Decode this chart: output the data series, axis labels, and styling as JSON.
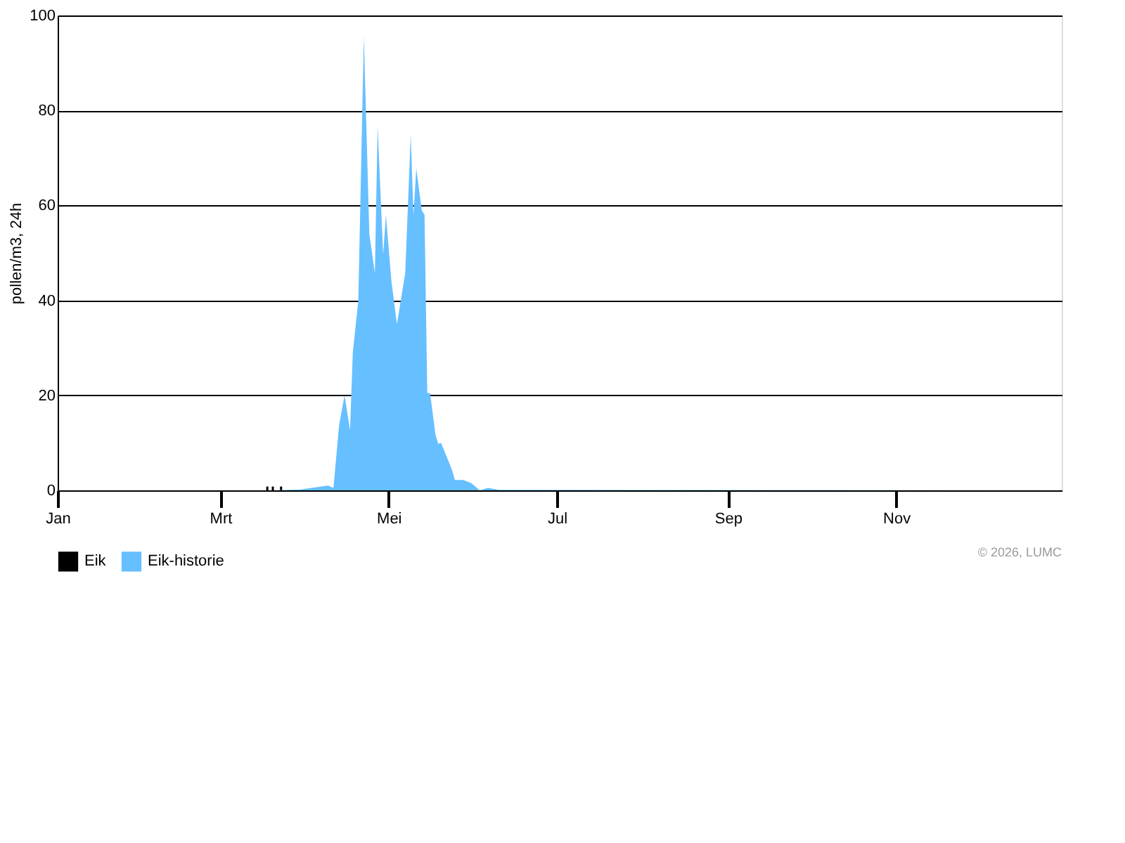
{
  "chart_data": {
    "type": "area",
    "ylabel": "pollen/m3, 24h",
    "xlim": [
      "2026-01-01",
      "2026-12-31"
    ],
    "xticks": [
      {
        "value": "2026-01-01",
        "label": "Jan"
      },
      {
        "value": "2026-03-01",
        "label": "Mrt"
      },
      {
        "value": "2026-05-01",
        "label": "Mei"
      },
      {
        "value": "2026-07-01",
        "label": "Jul"
      },
      {
        "value": "2026-09-01",
        "label": "Sep"
      },
      {
        "value": "2026-11-01",
        "label": "Nov"
      }
    ],
    "ylim": [
      0,
      100
    ],
    "yticks": [
      0,
      20,
      40,
      60,
      80,
      100
    ],
    "grid": "y",
    "legend": "bottom",
    "series": [
      {
        "name": "Eik",
        "type": "bar",
        "color": "#000000",
        "x": [
          "2026-03-18",
          "2026-03-20",
          "2026-03-23"
        ],
        "values": [
          0.8,
          0.8,
          0.8
        ]
      },
      {
        "name": "Eik-historie",
        "color": "#66bfff",
        "x": [
          "2026-01-01",
          "2026-03-20",
          "2026-03-30",
          "2026-04-09",
          "2026-04-11",
          "2026-04-13",
          "2026-04-15",
          "2026-04-17",
          "2026-04-18",
          "2026-04-20",
          "2026-04-22",
          "2026-04-24",
          "2026-04-26",
          "2026-04-27",
          "2026-04-29",
          "2026-04-30",
          "2026-05-02",
          "2026-05-04",
          "2026-05-07",
          "2026-05-09",
          "2026-05-10",
          "2026-05-11",
          "2026-05-13",
          "2026-05-14",
          "2026-05-15",
          "2026-05-16",
          "2026-05-18",
          "2026-05-19",
          "2026-05-20",
          "2026-05-23",
          "2026-05-24",
          "2026-05-25",
          "2026-05-28",
          "2026-05-31",
          "2026-06-03",
          "2026-06-06",
          "2026-06-10",
          "2026-12-31"
        ],
        "values": [
          0,
          0,
          0.2,
          1,
          0.5,
          13.6,
          20,
          12.7,
          29,
          40,
          95.5,
          54,
          45.7,
          76.7,
          49.7,
          58,
          44,
          35,
          45.7,
          74.8,
          58,
          67.8,
          59,
          58,
          20.5,
          20.5,
          11.6,
          9.8,
          10,
          5.7,
          4.2,
          2.2,
          2.2,
          1.5,
          0,
          0.5,
          0.1,
          0
        ]
      }
    ],
    "annotations": [
      "© 2026, LUMC"
    ]
  }
}
